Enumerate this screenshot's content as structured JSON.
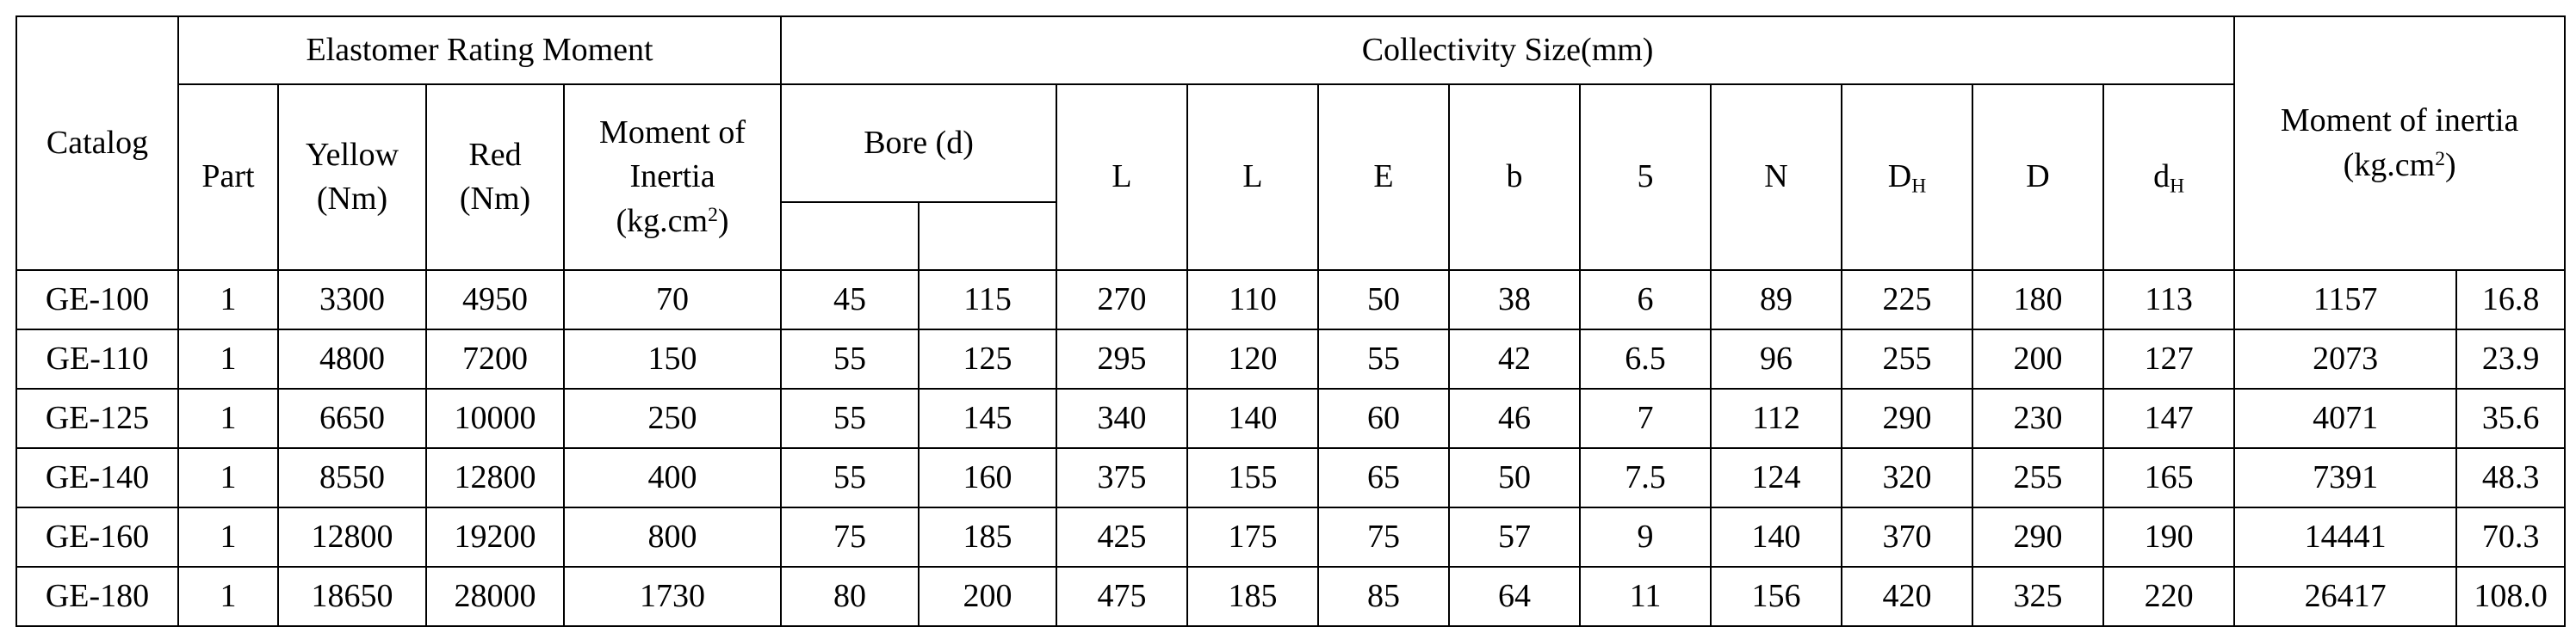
{
  "header": {
    "catalog": "Catalog",
    "elastomer_group": "Elastomer Rating Moment",
    "size_group": "Collectivity Size(mm)",
    "moment_group_line1": "Moment of inertia",
    "moment_group_line2_pre": "(kg.cm",
    "moment_group_line2_sup": "2",
    "moment_group_line2_post": ")",
    "part": "Part",
    "yellow": "Yellow\n(Nm)",
    "red": "Red\n(Nm)",
    "inertia": "Moment of\nInertia",
    "inertia_unit_pre": "(kg.cm",
    "inertia_unit_sup": "2",
    "inertia_unit_post": ")",
    "bore": "Bore (d)",
    "L1": "L",
    "L2": "L",
    "E": "E",
    "b": "b",
    "s": "5",
    "N": "N",
    "DH_base": "D",
    "DH_sub": "H",
    "D": "D",
    "dH_base": "d",
    "dH_sub": "H"
  },
  "rows": [
    {
      "catalog": "GE-100",
      "part": "1",
      "yellow": "3300",
      "red": "4950",
      "inertia": "70",
      "bore_min": "45",
      "bore_max": "115",
      "L1": "270",
      "L2": "110",
      "E": "50",
      "b": "38",
      "s": "6",
      "N": "89",
      "DH": "225",
      "D": "180",
      "dH": "113",
      "moment1": "1157",
      "moment2": "16.8"
    },
    {
      "catalog": "GE-110",
      "part": "1",
      "yellow": "4800",
      "red": "7200",
      "inertia": "150",
      "bore_min": "55",
      "bore_max": "125",
      "L1": "295",
      "L2": "120",
      "E": "55",
      "b": "42",
      "s": "6.5",
      "N": "96",
      "DH": "255",
      "D": "200",
      "dH": "127",
      "moment1": "2073",
      "moment2": "23.9"
    },
    {
      "catalog": "GE-125",
      "part": "1",
      "yellow": "6650",
      "red": "10000",
      "inertia": "250",
      "bore_min": "55",
      "bore_max": "145",
      "L1": "340",
      "L2": "140",
      "E": "60",
      "b": "46",
      "s": "7",
      "N": "112",
      "DH": "290",
      "D": "230",
      "dH": "147",
      "moment1": "4071",
      "moment2": "35.6"
    },
    {
      "catalog": "GE-140",
      "part": "1",
      "yellow": "8550",
      "red": "12800",
      "inertia": "400",
      "bore_min": "55",
      "bore_max": "160",
      "L1": "375",
      "L2": "155",
      "E": "65",
      "b": "50",
      "s": "7.5",
      "N": "124",
      "DH": "320",
      "D": "255",
      "dH": "165",
      "moment1": "7391",
      "moment2": "48.3"
    },
    {
      "catalog": "GE-160",
      "part": "1",
      "yellow": "12800",
      "red": "19200",
      "inertia": "800",
      "bore_min": "75",
      "bore_max": "185",
      "L1": "425",
      "L2": "175",
      "E": "75",
      "b": "57",
      "s": "9",
      "N": "140",
      "DH": "370",
      "D": "290",
      "dH": "190",
      "moment1": "14441",
      "moment2": "70.3"
    },
    {
      "catalog": "GE-180",
      "part": "1",
      "yellow": "18650",
      "red": "28000",
      "inertia": "1730",
      "bore_min": "80",
      "bore_max": "200",
      "L1": "475",
      "L2": "185",
      "E": "85",
      "b": "64",
      "s": "11",
      "N": "156",
      "DH": "420",
      "D": "325",
      "dH": "220",
      "moment1": "26417",
      "moment2": "108.0"
    }
  ]
}
